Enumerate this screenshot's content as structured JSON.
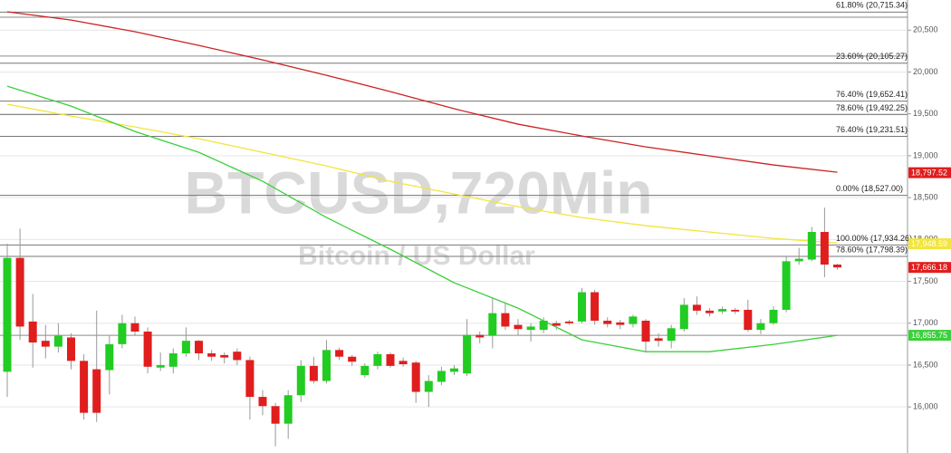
{
  "chart_data": {
    "type": "candlestick",
    "title": "BTCUSD,720Min",
    "subtitle": "Bitcoin / US Dollar",
    "ylim": [
      15450,
      20860
    ],
    "yticks": [
      {
        "value": 16000,
        "label": "16,000"
      },
      {
        "value": 16500,
        "label": "16,500"
      },
      {
        "value": 17000,
        "label": "17,000"
      },
      {
        "value": 17500,
        "label": "17,500"
      },
      {
        "value": 18000,
        "label": "18,000"
      },
      {
        "value": 18500,
        "label": "18,500"
      },
      {
        "value": 19000,
        "label": "19,000"
      },
      {
        "value": 19500,
        "label": "19,500"
      },
      {
        "value": 20000,
        "label": "20,000"
      },
      {
        "value": 20500,
        "label": "20,500"
      }
    ],
    "grid": true,
    "up_color": "#22cc22",
    "down_color": "#e01e1e",
    "open": [
      16420,
      17780,
      17020,
      16790,
      16720,
      16830,
      16550,
      16450,
      16440,
      16750,
      17000,
      16900,
      16470,
      16480,
      16640,
      16790,
      16640,
      16620,
      16660,
      16560,
      16120,
      16010,
      15800,
      16140,
      16490,
      16310,
      16680,
      16600,
      16380,
      16490,
      16630,
      16550,
      16530,
      16180,
      16300,
      16420,
      16400,
      16860,
      16850,
      17120,
      16980,
      16920,
      16920,
      17000,
      17020,
      17020,
      17370,
      17030,
      17010,
      16990,
      17030,
      16820,
      16790,
      16930,
      17220,
      17150,
      17140,
      17160,
      17160,
      16920,
      17000,
      17160,
      17740,
      17760,
      18090,
      17700
    ],
    "high": [
      17950,
      18130,
      17350,
      16980,
      17000,
      16880,
      16630,
      17150,
      16850,
      17100,
      17080,
      16950,
      16650,
      16700,
      16950,
      16800,
      16680,
      16650,
      16700,
      16600,
      16200,
      16050,
      16200,
      16560,
      16600,
      16800,
      16710,
      16620,
      16520,
      16660,
      16650,
      16590,
      16550,
      16380,
      16480,
      16500,
      17050,
      16900,
      17300,
      17250,
      17050,
      17000,
      17070,
      17030,
      17040,
      17420,
      17400,
      17070,
      17040,
      17100,
      17050,
      16880,
      16980,
      17300,
      17320,
      17180,
      17200,
      17180,
      17280,
      17050,
      17200,
      17800,
      17900,
      18150,
      18380,
      17710
    ],
    "low": [
      16120,
      16800,
      16470,
      16580,
      16650,
      16450,
      15850,
      15820,
      16150,
      16700,
      16850,
      16400,
      16430,
      16400,
      16600,
      16560,
      16550,
      16520,
      16500,
      15850,
      15900,
      15530,
      15620,
      16060,
      16280,
      16280,
      16560,
      16490,
      16350,
      16450,
      16470,
      16480,
      16050,
      16000,
      16260,
      16380,
      16370,
      16760,
      16700,
      16920,
      16850,
      16780,
      16880,
      16920,
      16980,
      17000,
      16980,
      16950,
      16930,
      16950,
      16650,
      16720,
      16700,
      16900,
      17100,
      17080,
      17110,
      17110,
      16900,
      16870,
      16980,
      17130,
      17700,
      17740,
      17550,
      17640
    ],
    "close": [
      17780,
      16960,
      16770,
      16720,
      16850,
      16550,
      15930,
      15930,
      16750,
      17000,
      16900,
      16480,
      16500,
      16640,
      16790,
      16640,
      16600,
      16590,
      16560,
      16120,
      16010,
      15800,
      16140,
      16490,
      16310,
      16680,
      16600,
      16540,
      16490,
      16630,
      16490,
      16510,
      16180,
      16310,
      16430,
      16460,
      16860,
      16830,
      17120,
      16960,
      16930,
      16960,
      17030,
      16970,
      17000,
      17370,
      17030,
      16990,
      16980,
      17080,
      16780,
      16790,
      16940,
      17220,
      17150,
      17120,
      17170,
      17140,
      16920,
      17000,
      17160,
      17740,
      17770,
      18090,
      17700,
      17666.18
    ],
    "series": [
      {
        "type": "line",
        "color": "#cc2222",
        "x": [
          0,
          5,
          10,
          15,
          20,
          25,
          30,
          35,
          40,
          45,
          50,
          55,
          60,
          65
        ],
        "values": [
          20719,
          20621,
          20481,
          20318,
          20145,
          19961,
          19766,
          19561,
          19377,
          19236,
          19106,
          18998,
          18890,
          18803
        ]
      },
      {
        "type": "line",
        "color": "#f2e53c",
        "x": [
          0,
          5,
          10,
          15,
          20,
          25,
          30,
          35,
          40,
          45,
          50,
          55,
          60,
          65
        ],
        "values": [
          19615,
          19474,
          19344,
          19203,
          19041,
          18879,
          18695,
          18543,
          18392,
          18262,
          18165,
          18089,
          18013,
          17959
        ]
      },
      {
        "type": "line",
        "color": "#3ccf3c",
        "x": [
          0,
          5,
          10,
          15,
          20,
          25,
          30,
          35,
          40,
          45,
          50,
          55,
          60,
          65
        ],
        "values": [
          19831,
          19593,
          19290,
          19041,
          18695,
          18262,
          17883,
          17483,
          17180,
          16801,
          16660,
          16660,
          16747,
          16855
        ]
      }
    ],
    "levels": [
      {
        "value": 20715.34,
        "label": "61.80% (20,715.34)"
      },
      {
        "value": 20105.27,
        "label": "23.60% (20,105.27)"
      },
      {
        "value": 19652.41,
        "label": "76.40% (19,652.41)"
      },
      {
        "value": 19492.25,
        "label": "78.60% (19,492.25)"
      },
      {
        "value": 19231.51,
        "label": "76.40% (19,231.51)"
      },
      {
        "value": 18527.0,
        "label": "0.00% (18,527.00)"
      },
      {
        "value": 17934.26,
        "label": "100.00% (17,934.26)"
      },
      {
        "value": 17798.39,
        "label": "78.60% (17,798.39)"
      }
    ],
    "horizontal_lines": [
      20655,
      20190,
      16855.75
    ],
    "price_tags": [
      {
        "value": 18797.52,
        "label": "18,797.52",
        "color": "#e01e1e"
      },
      {
        "value": 17948.59,
        "label": "17,948.59",
        "color": "#f2e53c"
      },
      {
        "value": 17666.18,
        "label": "17,666.18",
        "color": "#e01e1e"
      },
      {
        "value": 16855.75,
        "label": "16,855.75",
        "color": "#3ccf3c"
      }
    ]
  }
}
